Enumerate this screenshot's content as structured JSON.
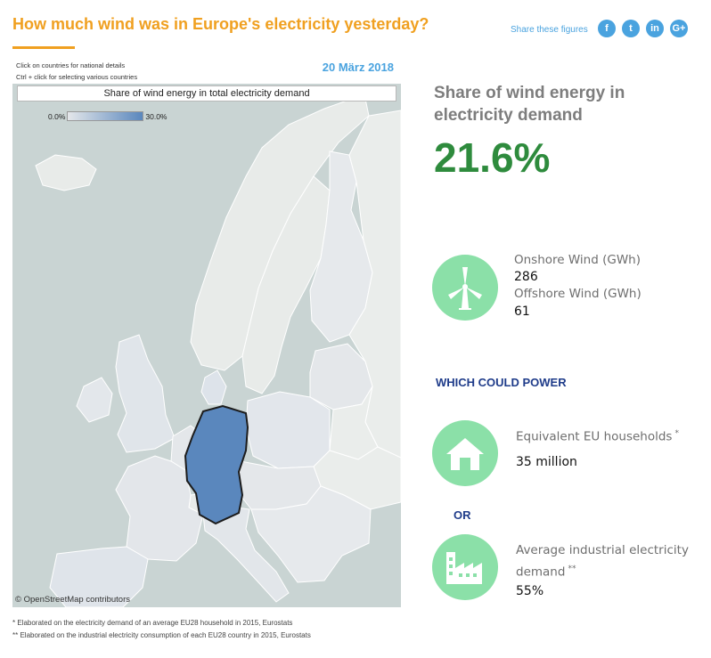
{
  "header": {
    "title": "How much wind was in Europe's electricity yesterday?",
    "share_label": "Share these figures",
    "share_icons": [
      {
        "name": "facebook-icon",
        "glyph": "f"
      },
      {
        "name": "twitter-icon",
        "glyph": "t"
      },
      {
        "name": "linkedin-icon",
        "glyph": "in"
      },
      {
        "name": "google-plus-icon",
        "glyph": "G+"
      }
    ]
  },
  "map": {
    "hint_line1": "Click on countries for national details",
    "hint_line2": "Ctrl + click  for selecting various countries",
    "date": "20 März 2018",
    "map_title": "Share of wind energy in total electricity demand",
    "legend_min": "0.0%",
    "legend_max": "30.0%",
    "credit": "© OpenStreetMap contributors",
    "selected_country": "Germany",
    "colors": {
      "water": "#c9d4d3",
      "land": "#e8ebe9",
      "selected": "#5a87bd"
    }
  },
  "summary": {
    "headline": "Share of wind energy in electricity demand",
    "value": "21.6%",
    "value_color": "#2e8b3d"
  },
  "wind": {
    "icon": "wind-turbine-icon",
    "onshore_label": "Onshore Wind (GWh)",
    "onshore_value": "286",
    "offshore_label": "Offshore Wind (GWh)",
    "offshore_value": "61"
  },
  "which_could_power": "WHICH COULD POWER",
  "households": {
    "icon": "house-icon",
    "label": "Equivalent EU households",
    "marker": "*",
    "value": "35 million"
  },
  "or_label": "OR",
  "industry": {
    "icon": "factory-icon",
    "label": "Average industrial electricity demand",
    "marker": "**",
    "value": "55%"
  },
  "footnotes": {
    "note1": "* Elaborated on the electricity demand of an average EU28 household in 2015, Eurostats",
    "note2": "** Elaborated on the industrial electricity consumption of each EU28 country in 2015, Eurostats"
  },
  "accent_colors": {
    "title": "#f0a020",
    "share": "#4aa3df",
    "circle": "#8be0a8",
    "navy": "#1f3c8a"
  }
}
